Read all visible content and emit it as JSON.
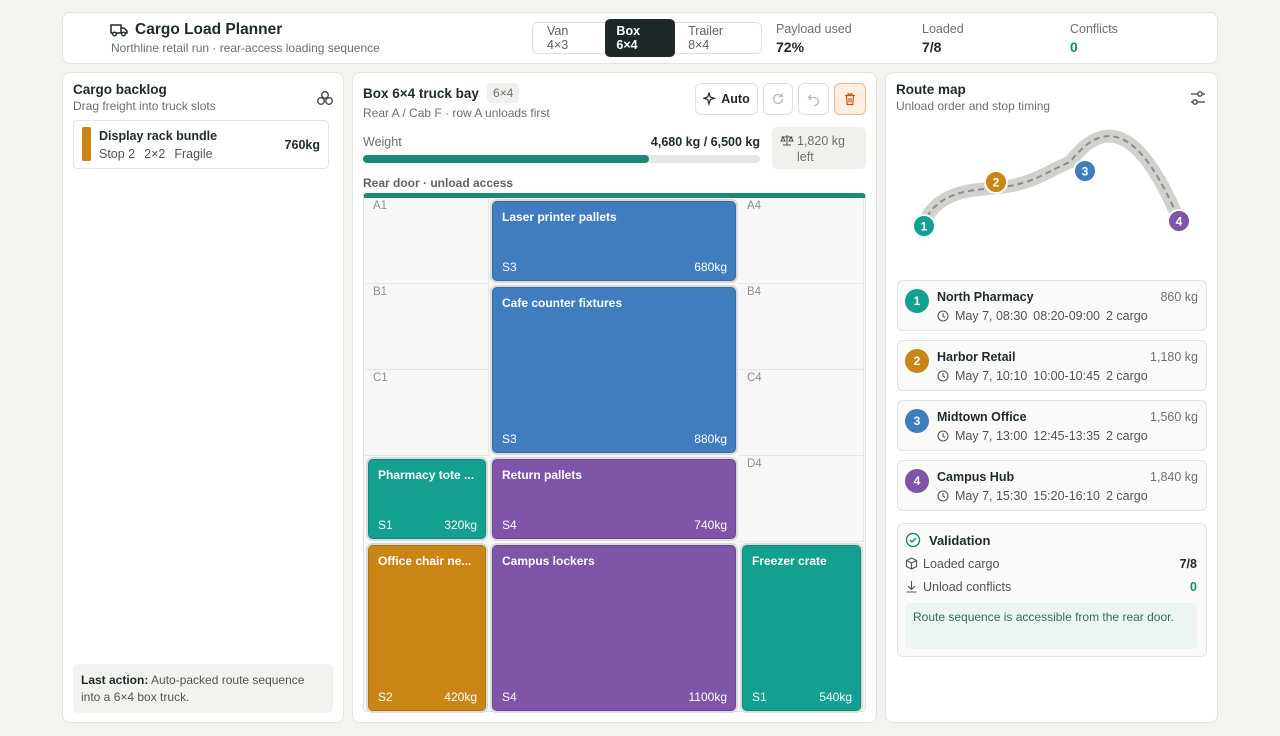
{
  "header": {
    "title": "Cargo Load Planner",
    "subtitle": "Northline retail run · rear-access loading sequence",
    "truck_options": [
      "Van 4×3",
      "Box 6×4",
      "Trailer 8×4"
    ],
    "stats": [
      {
        "label": "Payload used",
        "value": 72,
        "value_label": "72%"
      },
      {
        "label": "Loaded",
        "value": "7/8"
      },
      {
        "label": "Conflicts",
        "value": "0"
      }
    ]
  },
  "backlog": {
    "title": "Cargo backlog",
    "subtitle": "Drag freight into truck slots",
    "items": [
      {
        "name": "Display rack bundle",
        "stop": "Stop 2",
        "size": "2×2",
        "tag": "Fragile",
        "weight": "760kg"
      }
    ],
    "last_action": {
      "label": "Last action:",
      "text": "Auto-packed route sequence into a 6×4 box truck."
    }
  },
  "bay": {
    "title": "Box 6×4 truck bay",
    "badge": "6×4",
    "subtitle": "Rear A / Cab F · row A unloads first",
    "auto_button": "Auto",
    "weight_label": "Weight",
    "weight_value": "4,680 kg / 6,500 kg",
    "weight_left": "1,820 kg left",
    "door_label": "Rear door · unload access",
    "empty_slots": [
      "A1",
      "A4",
      "B1",
      "B4",
      "C1",
      "C4",
      "D4"
    ],
    "cargo": [
      {
        "name": "Laser printer pallets",
        "stop": "S3",
        "weight": "680kg"
      },
      {
        "name": "Cafe counter fixtures",
        "stop": "S3",
        "weight": "880kg"
      },
      {
        "name": "Pharmacy tote ...",
        "stop": "S1",
        "weight": "320kg"
      },
      {
        "name": "Return pallets",
        "stop": "S4",
        "weight": "740kg"
      },
      {
        "name": "Office chair ne...",
        "stop": "S2",
        "weight": "420kg"
      },
      {
        "name": "Campus lockers",
        "stop": "S4",
        "weight": "1100kg"
      },
      {
        "name": "Freezer crate",
        "stop": "S1",
        "weight": "540kg"
      }
    ]
  },
  "route": {
    "title": "Route map",
    "subtitle": "Unload order and stop timing",
    "stops": [
      {
        "number": "1",
        "name": "North Pharmacy",
        "weight": "860 kg",
        "date": "May 7, 08:30",
        "window": "08:20-09:00",
        "cargo": "2 cargo"
      },
      {
        "number": "2",
        "name": "Harbor Retail",
        "weight": "1,180 kg",
        "date": "May 7, 10:10",
        "window": "10:00-10:45",
        "cargo": "2 cargo"
      },
      {
        "number": "3",
        "name": "Midtown Office",
        "weight": "1,560 kg",
        "date": "May 7, 13:00",
        "window": "12:45-13:35",
        "cargo": "2 cargo"
      },
      {
        "number": "4",
        "name": "Campus Hub",
        "weight": "1,840 kg",
        "date": "May 7, 15:30",
        "window": "15:20-16:10",
        "cargo": "2 cargo"
      }
    ]
  },
  "validation": {
    "title": "Validation",
    "rows": [
      {
        "label": "Loaded cargo",
        "value": "7/8"
      },
      {
        "label": "Unload conflicts",
        "value": "0"
      }
    ],
    "note": "Route sequence is accessible from the rear door."
  }
}
